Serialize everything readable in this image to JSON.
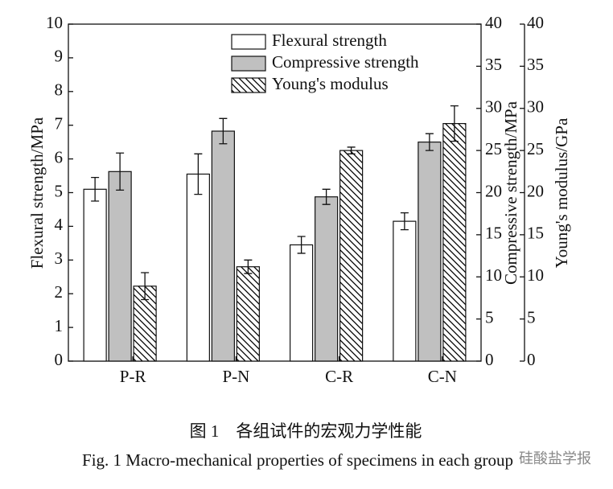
{
  "chart_data": {
    "type": "bar",
    "categories": [
      "P-R",
      "P-N",
      "C-R",
      "C-N"
    ],
    "series": [
      {
        "name": "Flexural strength",
        "color": "#ffffff",
        "values": [
          5.1,
          5.55,
          3.45,
          4.15
        ],
        "errors": [
          0.35,
          0.6,
          0.25,
          0.25
        ]
      },
      {
        "name": "Compressive strength",
        "color": "#c0c0c0",
        "axis": "y2",
        "values": [
          22.5,
          27.3,
          19.5,
          26.0
        ],
        "errors": [
          2.2,
          1.5,
          0.9,
          1.0
        ]
      },
      {
        "name": "Young's modulus",
        "color": "#000000",
        "hatch": true,
        "axis": "y3",
        "values": [
          8.9,
          11.2,
          25.0,
          28.2
        ],
        "errors": [
          1.6,
          0.8,
          0.4,
          2.1
        ]
      }
    ],
    "ylabel": "Flexural strength/MPa",
    "ylim": [
      0,
      10
    ],
    "yticks": [
      0,
      1,
      2,
      3,
      4,
      5,
      6,
      7,
      8,
      9,
      10
    ],
    "y2label": "Compressive strength/MPa",
    "y2lim": [
      0,
      40
    ],
    "y2ticks": [
      0,
      5,
      10,
      15,
      20,
      25,
      30,
      35,
      40
    ],
    "y3label": "Young's modulus/GPa",
    "y3lim": [
      0,
      40
    ],
    "y3ticks": [
      0,
      5,
      10,
      15,
      20,
      25,
      30,
      35,
      40
    ],
    "caption_cn": "图 1　各组试件的宏观力学性能",
    "caption_en": "Fig. 1    Macro-mechanical properties of specimens in each group",
    "watermark": "硅酸盐学报"
  }
}
